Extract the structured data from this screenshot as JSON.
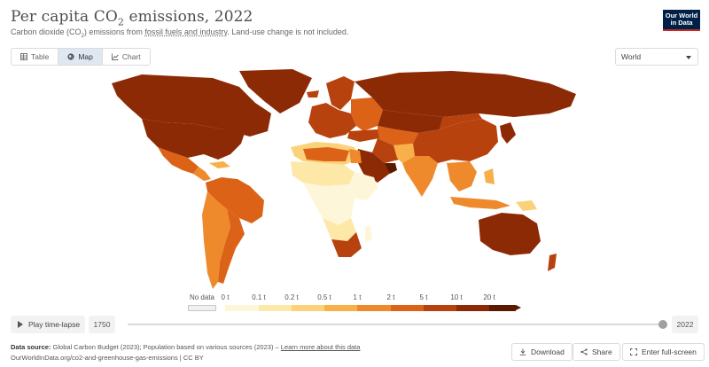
{
  "header": {
    "title_main": "Per capita CO",
    "title_sub": "2",
    "title_rest": " emissions, 2022",
    "subtitle_a": "Carbon dioxide (CO",
    "subtitle_sub": "2",
    "subtitle_b": ") emissions from ",
    "subtitle_link": "fossil fuels and industry",
    "subtitle_c": ". Land-use change is not included.",
    "logo_line1": "Our World",
    "logo_line2": "in Data"
  },
  "tabs": [
    {
      "label": "Table",
      "icon": "table-icon"
    },
    {
      "label": "Map",
      "icon": "globe-icon",
      "active": true
    },
    {
      "label": "Chart",
      "icon": "chart-icon"
    }
  ],
  "region_select": {
    "value": "World"
  },
  "legend": {
    "no_data_label": "No data",
    "ticks": [
      "0 t",
      "0.1 t",
      "0.2 t",
      "0.5 t",
      "1 t",
      "2 t",
      "5 t",
      "10 t",
      "20 t"
    ],
    "colors": [
      "#fef6d8",
      "#fde8a8",
      "#fbd27a",
      "#f7b04a",
      "#ef8a2c",
      "#dc6218",
      "#b8420e",
      "#8c2a06",
      "#5a1a00"
    ],
    "no_data_color": "#f0f0f0"
  },
  "timeline": {
    "play_label": "Play time-lapse",
    "start_year": "1750",
    "end_year": "2022"
  },
  "footer": {
    "source_label": "Data source:",
    "source_text": "Global Carbon Budget (2023); Population based on various sources (2023) –",
    "learn_more": "Learn more about this data",
    "url_line": "OurWorldInData.org/co2-and-greenhouse-gas-emissions | CC BY"
  },
  "actions": {
    "download": "Download",
    "share": "Share",
    "fullscreen": "Enter full-screen"
  }
}
